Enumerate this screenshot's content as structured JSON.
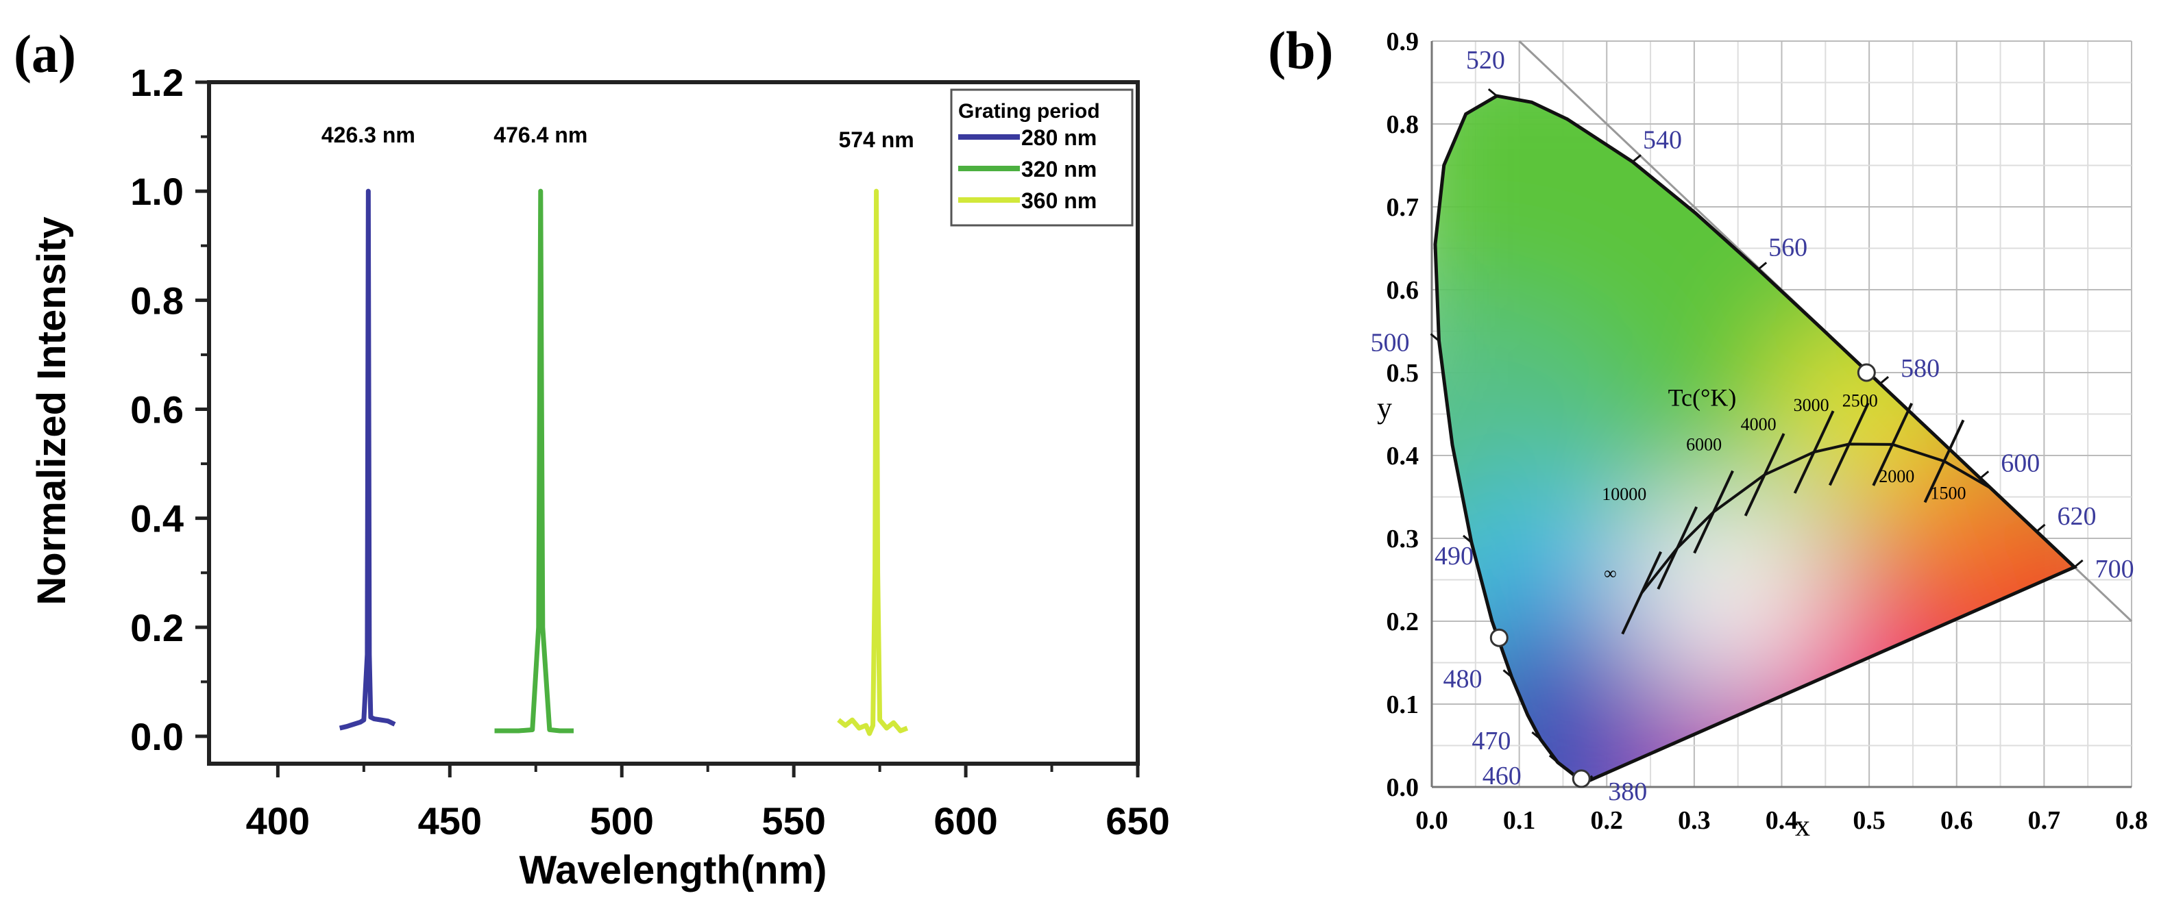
{
  "chart_data": [
    {
      "panel_label": "(a)",
      "type": "line",
      "xlabel": "Wavelength(nm)",
      "ylabel": "Normalized Intensity",
      "xlim": [
        380,
        650
      ],
      "ylim": [
        -0.06,
        1.2
      ],
      "xticks": [
        "400",
        "450",
        "500",
        "550",
        "600",
        "650"
      ],
      "yticks": [
        "0.0",
        "0.2",
        "0.4",
        "0.6",
        "0.8",
        "1.0",
        "1.2"
      ],
      "grid": false,
      "legend": {
        "title": "Grating period",
        "placement": "top-right"
      },
      "annotations": [
        {
          "text": "426.3 nm",
          "x": 426.3
        },
        {
          "text": "476.4 nm",
          "x": 476.4
        },
        {
          "text": "574 nm",
          "x": 574
        }
      ],
      "series": [
        {
          "name": "280 nm",
          "color": "#3a3a9e",
          "x": [
            418,
            420,
            422,
            424,
            425,
            426,
            426.3,
            426.6,
            427,
            428,
            430,
            432,
            434
          ],
          "y": [
            0.015,
            0.018,
            0.022,
            0.026,
            0.03,
            0.15,
            1.0,
            0.15,
            0.035,
            0.032,
            0.03,
            0.028,
            0.022
          ]
        },
        {
          "name": "320 nm",
          "color": "#4cb040",
          "x": [
            463,
            466,
            470,
            474,
            475.8,
            476.4,
            477,
            479,
            482,
            486
          ],
          "y": [
            0.01,
            0.01,
            0.01,
            0.012,
            0.2,
            1.0,
            0.2,
            0.012,
            0.01,
            0.01
          ]
        },
        {
          "name": "360 nm",
          "color": "#d2e83a",
          "x": [
            563,
            565,
            567,
            569,
            571,
            572,
            573,
            573.6,
            574,
            574.4,
            575,
            577,
            579,
            581,
            583
          ],
          "y": [
            0.03,
            0.02,
            0.03,
            0.015,
            0.02,
            0.005,
            0.02,
            0.3,
            1.0,
            0.3,
            0.03,
            0.015,
            0.025,
            0.01,
            0.015
          ]
        }
      ]
    },
    {
      "panel_label": "(b)",
      "type": "scatter",
      "xlabel": "x",
      "ylabel": "y",
      "xlim": [
        0,
        0.8
      ],
      "ylim": [
        0,
        0.9
      ],
      "xticks": [
        "0.0",
        "0.1",
        "0.2",
        "0.3",
        "0.4",
        "0.5",
        "0.6",
        "0.7",
        "0.8"
      ],
      "yticks": [
        "0.0",
        "0.1",
        "0.2",
        "0.3",
        "0.4",
        "0.5",
        "0.6",
        "0.7",
        "0.8",
        "0.9"
      ],
      "grid": true,
      "wavelength_labels": [
        "380",
        "460",
        "470",
        "480",
        "490",
        "500",
        "520",
        "540",
        "560",
        "580",
        "600",
        "620",
        "700"
      ],
      "cct_title": "Tc(°K)",
      "cct_labels": [
        "1500",
        "2000",
        "2500",
        "3000",
        "4000",
        "6000",
        "10000",
        "∞"
      ],
      "points": [
        {
          "x": 0.497,
          "y": 0.5
        },
        {
          "x": 0.077,
          "y": 0.18
        },
        {
          "x": 0.171,
          "y": 0.01
        }
      ],
      "label_color": "#3b3b9c"
    }
  ]
}
